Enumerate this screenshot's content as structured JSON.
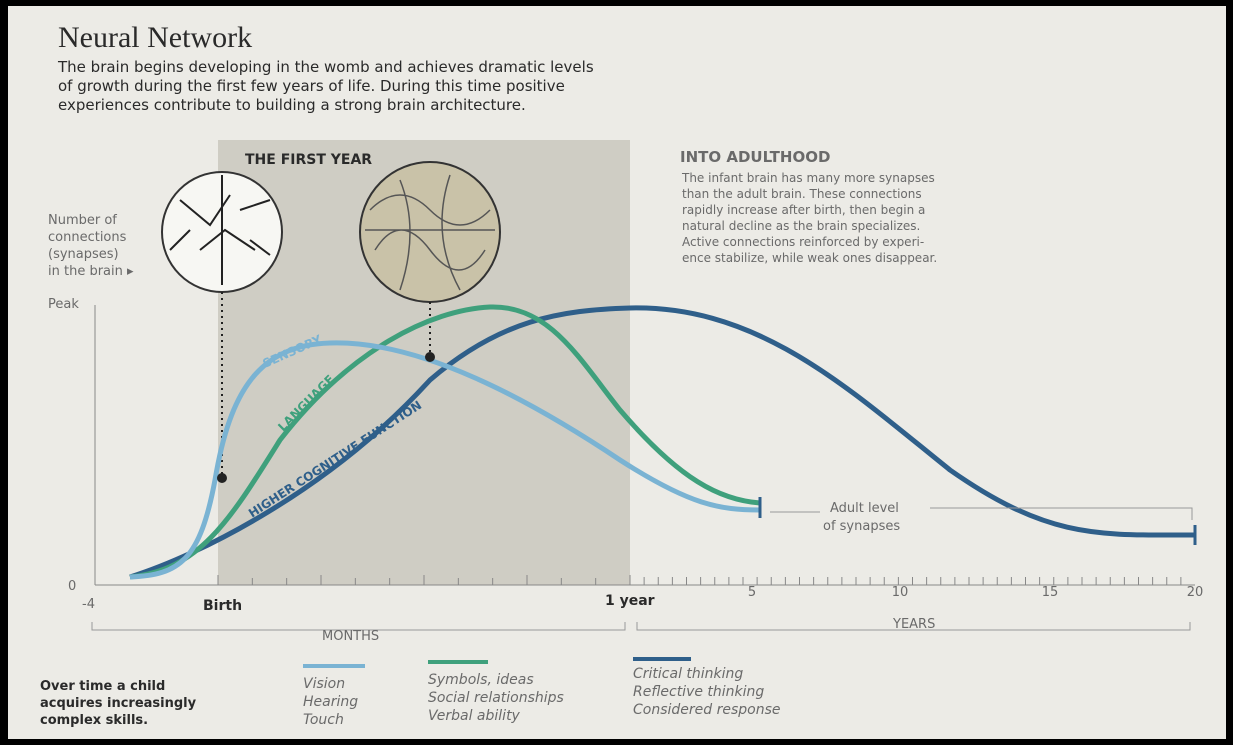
{
  "header": {
    "title": "Neural Network",
    "lines": [
      "The brain begins developing in the womb and achieves dramatic levels",
      "of growth during the first few years of life. During this time positive",
      "experiences contribute to building a strong brain architecture."
    ]
  },
  "first_year": "THE FIRST YEAR",
  "adulthood": {
    "title": "INTO ADULTHOOD",
    "lines": [
      "The infant brain has many more synapses",
      "than the adult brain. These connections",
      "rapidly increase after birth, then begin a",
      "natural decline as the brain specializes.",
      "Active connections reinforced by experi-",
      "ence stabilize, while weak ones disappear."
    ]
  },
  "y_axis": {
    "lines": [
      "Number of",
      "connections",
      "(synapses)",
      "in the brain ▸"
    ],
    "peak": "Peak",
    "zero": "0"
  },
  "x_axis": {
    "start": "-4",
    "birth": "Birth",
    "one_year": "1 year",
    "years": [
      "5",
      "10",
      "15",
      "20"
    ],
    "months_label": "MONTHS",
    "years_label": "YEARS"
  },
  "curves": {
    "sensory": "SENSORY",
    "language": "LANGUAGE",
    "higher": "HIGHER COGNITIVE FUNCTION"
  },
  "adult_level": [
    "Adult level",
    "of synapses"
  ],
  "footer": {
    "lines": [
      "Over time a child",
      "acquires increasingly",
      "complex skills."
    ],
    "legend": [
      [
        "Vision",
        "Hearing",
        "Touch"
      ],
      [
        "Symbols, ideas",
        "Social relationships",
        "Verbal ability"
      ],
      [
        "Critical thinking",
        "Reflective thinking",
        "Considered response"
      ]
    ]
  }
}
